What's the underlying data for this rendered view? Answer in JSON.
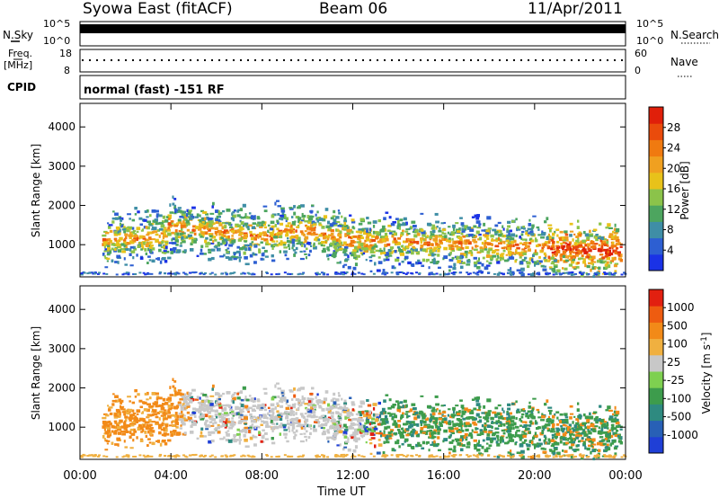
{
  "header": {
    "station": "Syowa East (fitACF)",
    "beam": "Beam 06",
    "date": "11/Apr/2011"
  },
  "top_panels": {
    "nsky_label": "N.Sky",
    "nsky_ticks": [
      "10^5",
      "10^0"
    ],
    "nsearch_label": "N.Search",
    "nsearch_ticks": [
      "10^5",
      "10^0"
    ],
    "freq_label": "Freq.",
    "freq_unit": "[MHz]",
    "freq_ticks": [
      "18",
      "8"
    ],
    "nave_label": "Nave",
    "nave_ticks": [
      "60",
      "0"
    ],
    "cpid_label": "CPID",
    "cpid_value": "normal (fast) -151 RF"
  },
  "chart_data": [
    {
      "type": "heatmap",
      "name": "power",
      "ylabel": "Slant Range [km]",
      "yticks": [
        "1000",
        "2000",
        "3000",
        "4000"
      ],
      "ylim": [
        180,
        4600
      ],
      "xlim": [
        "00:00",
        "24:00"
      ],
      "colorbar": {
        "label": "Power [dB]",
        "ticks": [
          "4",
          "8",
          "12",
          "16",
          "20",
          "24",
          "28"
        ],
        "colors": [
          "#1a32e6",
          "#2d5fd2",
          "#3f8ea6",
          "#4da55f",
          "#8bc34a",
          "#e8c21a",
          "#f0a020",
          "#f07a10",
          "#ea4b0c",
          "#e01f0a"
        ]
      }
    },
    {
      "type": "heatmap",
      "name": "velocity",
      "ylabel": "Slant Range [km]",
      "yticks": [
        "1000",
        "2000",
        "3000",
        "4000"
      ],
      "ylim": [
        180,
        4600
      ],
      "xlim": [
        "00:00",
        "24:00"
      ],
      "xticks": [
        "00:00",
        "04:00",
        "08:00",
        "12:00",
        "16:00",
        "20:00",
        "00:00"
      ],
      "xlabel": "Time UT",
      "colorbar": {
        "label": "Velocity [m s",
        "label_exp": "-1",
        "label_end": "]",
        "ticks": [
          "1000",
          "500",
          "100",
          "25",
          "-25",
          "-100",
          "-500",
          "-1000"
        ],
        "colors": [
          "#1f3fd6",
          "#2860b6",
          "#2e8a80",
          "#3d9c4c",
          "#7ed050",
          "#c8c8c8",
          "#f0b040",
          "#f28a18",
          "#ee5c10",
          "#e22010"
        ]
      }
    }
  ]
}
